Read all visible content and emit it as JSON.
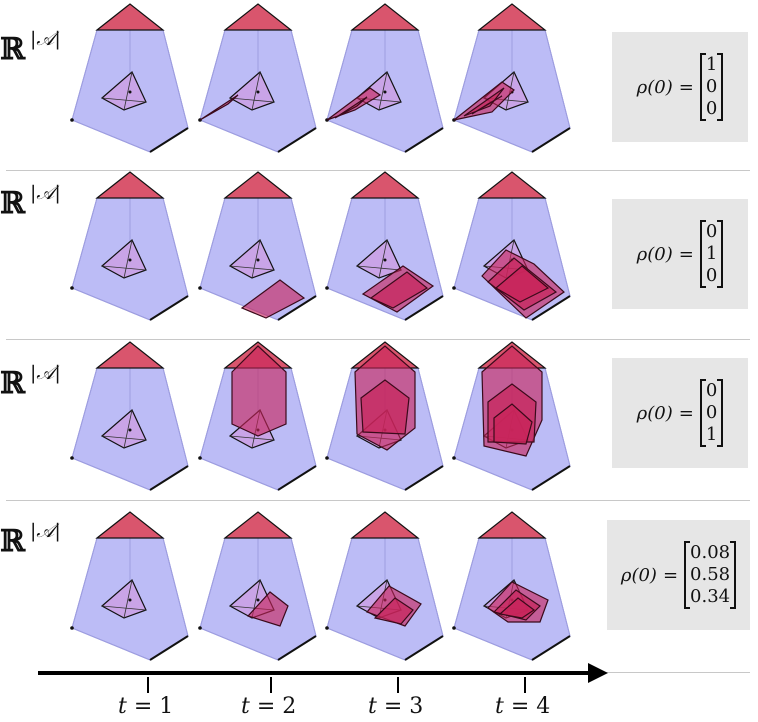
{
  "row_label": {
    "base": "ℝ",
    "superscript": "|𝒜|"
  },
  "rows": [
    {
      "rho_label": "ρ(0)",
      "equals": "=",
      "vector": [
        "1",
        "0",
        "0"
      ],
      "regions": [
        "none",
        "wedge-left",
        "wedge-left-2",
        "wedge-left-3"
      ]
    },
    {
      "rho_label": "ρ(0)",
      "equals": "=",
      "vector": [
        "0",
        "1",
        "0"
      ],
      "regions": [
        "none",
        "slab-right",
        "slab-right-2",
        "slab-right-3"
      ]
    },
    {
      "rho_label": "ρ(0)",
      "equals": "=",
      "vector": [
        "0",
        "0",
        "1"
      ],
      "regions": [
        "none",
        "column-up",
        "column-up-2",
        "column-up-3"
      ]
    },
    {
      "rho_label": "ρ(0)",
      "equals": "=",
      "vector": [
        "0.08",
        "0.58",
        "0.34"
      ],
      "regions": [
        "none",
        "mixed",
        "mixed-2",
        "mixed-3"
      ]
    }
  ],
  "time_axis": {
    "variable": "t",
    "equals": "=",
    "ticks": [
      "1",
      "2",
      "3",
      "4"
    ]
  },
  "colors": {
    "pyramid_fill": "#b8b8f6",
    "pyramid_edge": "#8f8fd8",
    "cap_fill": "#d9556d",
    "region_fill": "#c8245a",
    "simplex_fill": "#c9a2e6",
    "box_bg": "#e6e6e6"
  }
}
